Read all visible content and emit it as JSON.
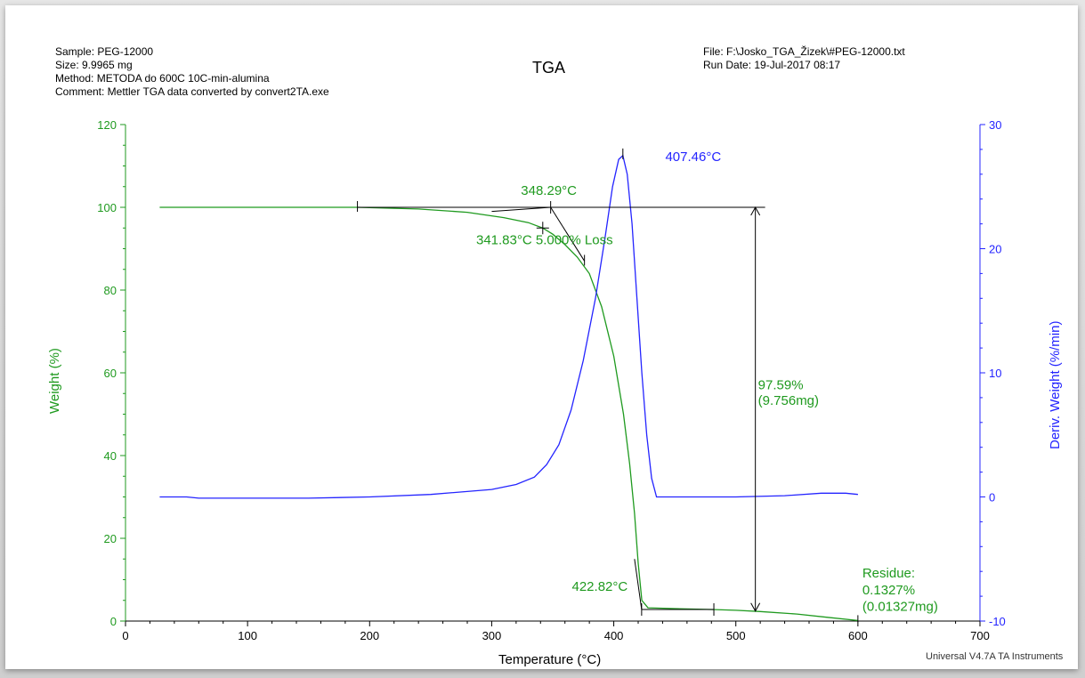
{
  "header": {
    "sample": "Sample: PEG-12000",
    "size": "Size:  9.9965 mg",
    "method": "Method: METODA do 600C 10C-min-alumina",
    "comment": "Comment: Mettler TGA data converted by convert2TA.exe",
    "title": "TGA",
    "file": "File: F:\\Josko_TGA_Žizek\\#PEG-12000.txt",
    "run_date": "Run Date: 19-Jul-2017 08:17"
  },
  "footer": "Universal V4.7A TA Instruments",
  "colors": {
    "weight": "#1f9a1f",
    "deriv": "#2424ff",
    "annotation": "#000000"
  },
  "chart_data": {
    "type": "line",
    "xlabel": "Temperature (°C)",
    "ylabel_left": "Weight (%)",
    "ylabel_right": "Deriv. Weight (%/min)",
    "xlim": [
      0,
      700
    ],
    "ylim_left": [
      0,
      120
    ],
    "ylim_right": [
      -10,
      30
    ],
    "x_ticks": [
      0,
      100,
      200,
      300,
      400,
      500,
      600,
      700
    ],
    "y_ticks_left": [
      0,
      20,
      40,
      60,
      80,
      100,
      120
    ],
    "y_ticks_right": [
      -10,
      0,
      10,
      20,
      30
    ],
    "series": [
      {
        "axis": "left",
        "points": [
          [
            28,
            100
          ],
          [
            100,
            100
          ],
          [
            190,
            100
          ],
          [
            240,
            99.6
          ],
          [
            280,
            98.8
          ],
          [
            310,
            97.5
          ],
          [
            330,
            96.3
          ],
          [
            341.8,
            95
          ],
          [
            350,
            93.5
          ],
          [
            360,
            91
          ],
          [
            370,
            88
          ],
          [
            380,
            84
          ],
          [
            390,
            76
          ],
          [
            400,
            64
          ],
          [
            408,
            50
          ],
          [
            413,
            38
          ],
          [
            417,
            26
          ],
          [
            420,
            14
          ],
          [
            423,
            5
          ],
          [
            428,
            3.2
          ],
          [
            450,
            3
          ],
          [
            480,
            2.8
          ],
          [
            500,
            2.6
          ],
          [
            520,
            2.3
          ],
          [
            550,
            1.7
          ],
          [
            575,
            0.9
          ],
          [
            600,
            0.13
          ]
        ]
      },
      {
        "axis": "right",
        "points": [
          [
            28,
            0
          ],
          [
            50,
            0
          ],
          [
            60,
            -0.1
          ],
          [
            100,
            -0.1
          ],
          [
            150,
            -0.1
          ],
          [
            200,
            0
          ],
          [
            250,
            0.2
          ],
          [
            300,
            0.6
          ],
          [
            320,
            1
          ],
          [
            335,
            1.6
          ],
          [
            345,
            2.6
          ],
          [
            355,
            4.2
          ],
          [
            365,
            7
          ],
          [
            375,
            11
          ],
          [
            385,
            16
          ],
          [
            393,
            21
          ],
          [
            399,
            25
          ],
          [
            404,
            27.2
          ],
          [
            407.46,
            27.5
          ],
          [
            411,
            26
          ],
          [
            415,
            22
          ],
          [
            419,
            16
          ],
          [
            423,
            10
          ],
          [
            427,
            5
          ],
          [
            431,
            1.5
          ],
          [
            435,
            0
          ],
          [
            450,
            0
          ],
          [
            500,
            0
          ],
          [
            540,
            0.1
          ],
          [
            570,
            0.3
          ],
          [
            590,
            0.3
          ],
          [
            600,
            0.2
          ]
        ]
      }
    ],
    "annotations": {
      "onset_label": "348.29°C",
      "loss_label": "341.83°C 5.000% Loss",
      "peak_label": "407.46°C",
      "end_label": "422.82°C",
      "loss_pct": "97.59%",
      "loss_mg": "(9.756mg)",
      "residue_title": "Residue:",
      "residue_pct": "0.1327%",
      "residue_mg": "(0.01327mg)",
      "baseline_weight": 100,
      "onset_temp": 348.29,
      "loss_temp": 341.83,
      "loss_weight": 95,
      "peak_temp": 407.46,
      "peak_value": 27.5,
      "end_temp": 422.82,
      "step_x": 516,
      "step_top": 100,
      "step_bottom": 2.41,
      "residue_temp": 600,
      "residue_weight": 0.13
    }
  }
}
